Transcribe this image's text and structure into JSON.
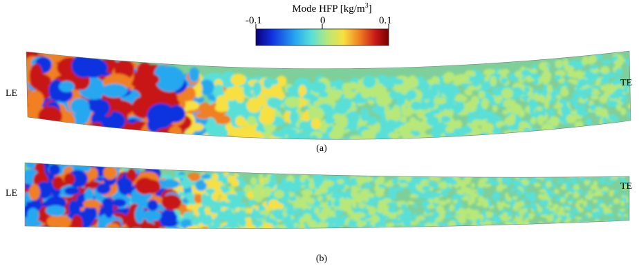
{
  "colorbar": {
    "title": "Mode HFP [kg/m",
    "title_sup": "3",
    "title_close": "]",
    "min_label": "-0.1",
    "mid_label": "0",
    "max_label": "0.1",
    "colors": [
      "#0a0078",
      "#1030e0",
      "#28a8f0",
      "#58e0d8",
      "#b8e878",
      "#f8e040",
      "#f08020",
      "#c81818",
      "#780000"
    ]
  },
  "panels": [
    {
      "caption": "(a)",
      "leading_edge_label": "LE",
      "trailing_edge_label": "TE"
    },
    {
      "caption": "(b)",
      "leading_edge_label": "LE",
      "trailing_edge_label": "TE"
    }
  ]
}
